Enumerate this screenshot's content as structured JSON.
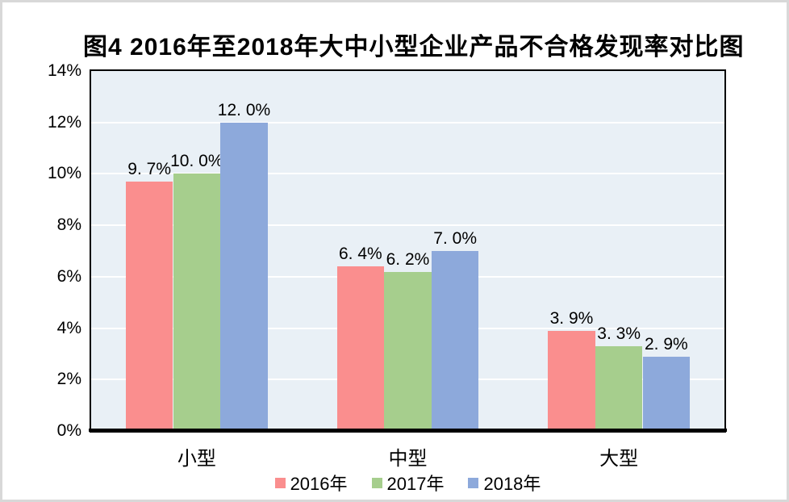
{
  "figure": {
    "outer_border_color": "#d8d8d8",
    "background": "#ffffff"
  },
  "chart_data": {
    "type": "bar",
    "title": "图4 2016年至2018年大中小型企业产品不合格发现率对比图",
    "categories": [
      "小型",
      "中型",
      "大型"
    ],
    "series": [
      {
        "name": "2016年",
        "color": "#fa8e8e",
        "values": [
          9.7,
          6.4,
          3.9
        ],
        "data_labels": [
          "9. 7%",
          "6. 4%",
          "3. 9%"
        ]
      },
      {
        "name": "2017年",
        "color": "#a6ce8d",
        "values": [
          10.0,
          6.2,
          3.3
        ],
        "data_labels": [
          "10. 0%",
          "6. 2%",
          "3. 3%"
        ]
      },
      {
        "name": "2018年",
        "color": "#8da9db",
        "values": [
          12.0,
          7.0,
          2.9
        ],
        "data_labels": [
          "12. 0%",
          "7. 0%",
          "2. 9%"
        ]
      }
    ],
    "xlabel": "",
    "ylabel": "",
    "ylim": [
      0,
      14
    ],
    "y_tick_step": 2,
    "y_tick_labels": [
      "0%",
      "2%",
      "4%",
      "6%",
      "8%",
      "10%",
      "12%",
      "14%"
    ],
    "grid": "horizontal",
    "legend_position": "bottom",
    "legend_entries": [
      "2016年",
      "2017年",
      "2018年"
    ],
    "plot_style": {
      "background": "#e9f0f6",
      "gridline_color": "#ffffff",
      "plot_border_color": "#000000",
      "axis_line_color": "#000000",
      "text_color": "#000000"
    }
  }
}
